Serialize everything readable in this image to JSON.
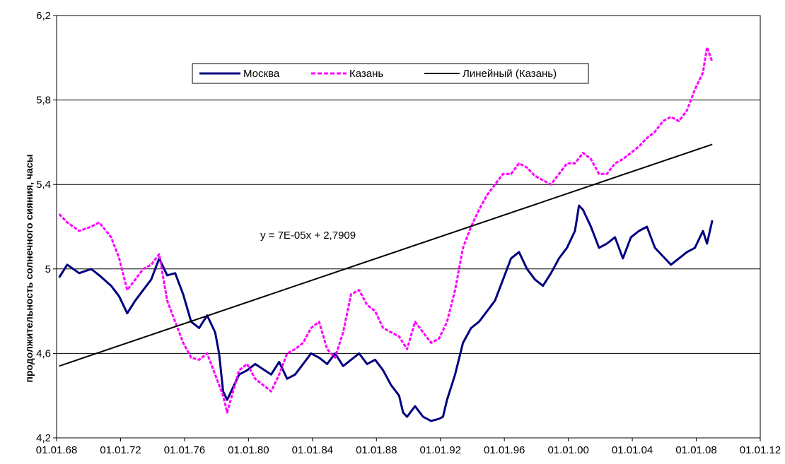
{
  "chart_data": {
    "type": "line",
    "ylabel": "продолжительность солнечного сияния, часы",
    "xlabel": "",
    "ylim": [
      4.2,
      6.2
    ],
    "xlim": [
      "1968-01-01",
      "2012-01-01"
    ],
    "y_ticks": [
      "4,2",
      "4,6",
      "5",
      "5,4",
      "5,8",
      "6,2"
    ],
    "x_ticks": [
      "01.01.68",
      "01.01.72",
      "01.01.76",
      "01.01.80",
      "01.01.84",
      "01.01.88",
      "01.01.92",
      "01.01.96",
      "01.01.00",
      "01.01.04",
      "01.01.08",
      "01.01.12"
    ],
    "grid": "horizontal",
    "legend_position": "top-center",
    "series": [
      {
        "name": "Москва",
        "color": "#000080",
        "style": "solid",
        "x": [
          "1968-03",
          "1968-09",
          "1969-06",
          "1970-03",
          "1970-09",
          "1971-06",
          "1971-12",
          "1972-06",
          "1972-12",
          "1973-06",
          "1973-12",
          "1974-06",
          "1974-12",
          "1975-06",
          "1975-12",
          "1976-06",
          "1976-12",
          "1977-06",
          "1977-12",
          "1978-03",
          "1978-06",
          "1978-09",
          "1979-06",
          "1979-12",
          "1980-06",
          "1981-06",
          "1981-12",
          "1982-06",
          "1982-12",
          "1983-06",
          "1983-12",
          "1984-06",
          "1984-12",
          "1985-06",
          "1985-12",
          "1986-06",
          "1986-12",
          "1987-06",
          "1987-12",
          "1988-06",
          "1988-12",
          "1989-06",
          "1989-09",
          "1989-12",
          "1990-06",
          "1990-12",
          "1991-06",
          "1991-12",
          "1992-03",
          "1992-06",
          "1992-12",
          "1993-06",
          "1993-12",
          "1994-06",
          "1994-12",
          "1995-06",
          "1995-12",
          "1996-06",
          "1996-12",
          "1997-06",
          "1997-12",
          "1998-06",
          "1998-12",
          "1999-06",
          "1999-12",
          "2000-06",
          "2000-09",
          "2000-12",
          "2001-06",
          "2001-12",
          "2002-06",
          "2002-12",
          "2003-06",
          "2003-12",
          "2004-06",
          "2004-12",
          "2005-06",
          "2005-12",
          "2006-06",
          "2006-12",
          "2007-06",
          "2007-12",
          "2008-06",
          "2008-09",
          "2009-01"
        ],
        "y": [
          4.96,
          5.02,
          4.98,
          5.0,
          4.97,
          4.92,
          4.87,
          4.79,
          4.85,
          4.9,
          4.95,
          5.05,
          4.97,
          4.98,
          4.88,
          4.75,
          4.72,
          4.78,
          4.7,
          4.6,
          4.42,
          4.38,
          4.5,
          4.52,
          4.55,
          4.5,
          4.56,
          4.48,
          4.5,
          4.55,
          4.6,
          4.58,
          4.55,
          4.6,
          4.54,
          4.57,
          4.6,
          4.55,
          4.57,
          4.52,
          4.45,
          4.4,
          4.32,
          4.3,
          4.35,
          4.3,
          4.28,
          4.29,
          4.3,
          4.38,
          4.5,
          4.65,
          4.72,
          4.75,
          4.8,
          4.85,
          4.95,
          5.05,
          5.08,
          5.0,
          4.95,
          4.92,
          4.98,
          5.05,
          5.1,
          5.18,
          5.3,
          5.28,
          5.2,
          5.1,
          5.12,
          5.15,
          5.05,
          5.15,
          5.18,
          5.2,
          5.1,
          5.06,
          5.02,
          5.05,
          5.08,
          5.1,
          5.18,
          5.12,
          5.23
        ]
      },
      {
        "name": "Казань",
        "color": "#FF00FF",
        "style": "dashed",
        "x": [
          "1968-03",
          "1968-09",
          "1969-06",
          "1970-03",
          "1970-09",
          "1971-06",
          "1971-12",
          "1972-06",
          "1972-12",
          "1973-06",
          "1973-12",
          "1974-06",
          "1974-12",
          "1975-06",
          "1975-12",
          "1976-06",
          "1976-12",
          "1977-06",
          "1977-12",
          "1978-06",
          "1978-09",
          "1979-06",
          "1979-12",
          "1980-06",
          "1981-06",
          "1981-12",
          "1982-06",
          "1982-12",
          "1983-06",
          "1983-12",
          "1984-06",
          "1984-12",
          "1985-06",
          "1985-12",
          "1986-06",
          "1986-12",
          "1987-06",
          "1987-12",
          "1988-06",
          "1988-12",
          "1989-06",
          "1989-12",
          "1990-06",
          "1990-12",
          "1991-06",
          "1991-12",
          "1992-06",
          "1992-12",
          "1993-06",
          "1993-12",
          "1994-06",
          "1994-12",
          "1995-06",
          "1995-12",
          "1996-06",
          "1996-12",
          "1997-06",
          "1997-12",
          "1998-06",
          "1998-12",
          "1999-06",
          "1999-12",
          "2000-06",
          "2000-12",
          "2001-06",
          "2001-12",
          "2002-06",
          "2002-12",
          "2003-06",
          "2003-12",
          "2004-06",
          "2004-12",
          "2005-06",
          "2005-12",
          "2006-06",
          "2006-12",
          "2007-06",
          "2007-12",
          "2008-06",
          "2008-09",
          "2009-01"
        ],
        "y": [
          5.26,
          5.22,
          5.18,
          5.2,
          5.22,
          5.15,
          5.05,
          4.9,
          4.95,
          5.0,
          5.02,
          5.07,
          4.85,
          4.75,
          4.65,
          4.58,
          4.57,
          4.6,
          4.5,
          4.4,
          4.32,
          4.52,
          4.55,
          4.48,
          4.42,
          4.5,
          4.6,
          4.62,
          4.65,
          4.72,
          4.75,
          4.62,
          4.58,
          4.7,
          4.88,
          4.9,
          4.83,
          4.8,
          4.72,
          4.7,
          4.68,
          4.62,
          4.75,
          4.7,
          4.65,
          4.67,
          4.75,
          4.9,
          5.1,
          5.2,
          5.28,
          5.35,
          5.4,
          5.45,
          5.45,
          5.5,
          5.48,
          5.44,
          5.42,
          5.4,
          5.45,
          5.5,
          5.5,
          5.55,
          5.52,
          5.45,
          5.45,
          5.5,
          5.52,
          5.55,
          5.58,
          5.62,
          5.65,
          5.7,
          5.72,
          5.7,
          5.75,
          5.85,
          5.93,
          6.05,
          5.98
        ]
      },
      {
        "name": "Линейный (Казань)",
        "color": "#000000",
        "style": "solid",
        "x": [
          "1968-03",
          "2009-01"
        ],
        "y": [
          4.54,
          5.59
        ]
      }
    ],
    "annotations": [
      {
        "text": "y = 7E-05x + 2,7909"
      }
    ]
  }
}
